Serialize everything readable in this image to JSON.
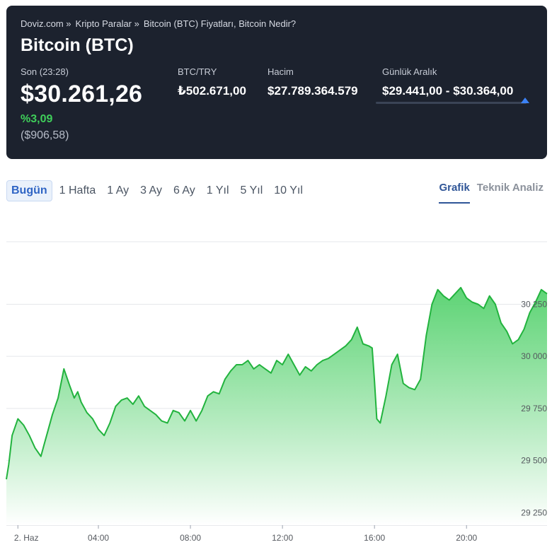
{
  "header": {
    "breadcrumb": [
      "Doviz.com »",
      "Kripto Paralar »",
      "Bitcoin (BTC) Fiyatları, Bitcoin Nedir?"
    ],
    "title": "Bitcoin (BTC)",
    "last_label": "Son (23:28)",
    "last_price": "$30.261,26",
    "change_pct": "%3,09",
    "change_abs": "($906,58)",
    "stats": {
      "btc_try_label": "BTC/TRY",
      "btc_try_value": "₺502.671,00",
      "volume_label": "Hacim",
      "volume_value": "$27.789.364.579",
      "range_label": "Günlük Aralık",
      "range_value": "$29.441,00 - $30.364,00",
      "range_position": 0.95
    },
    "colors": {
      "background": "#1c222e",
      "change_positive": "#3fcf5a",
      "range_marker": "#3b82f6"
    }
  },
  "period_tabs": [
    "Bugün",
    "1 Hafta",
    "1 Ay",
    "3 Ay",
    "6 Ay",
    "1 Yıl",
    "5 Yıl",
    "10 Yıl"
  ],
  "active_period": "Bugün",
  "view_tabs": [
    "Grafik",
    "Teknik Analiz"
  ],
  "active_view": "Grafik",
  "chart_data": {
    "type": "area",
    "x_unit": "hour",
    "xlim": [
      0.0,
      23.5
    ],
    "ylim": [
      29190,
      30550
    ],
    "x_ticks": [
      {
        "value": 0.5,
        "label": "2. Haz"
      },
      {
        "value": 4,
        "label": "04:00"
      },
      {
        "value": 8,
        "label": "08:00"
      },
      {
        "value": 12,
        "label": "12:00"
      },
      {
        "value": 16,
        "label": "16:00"
      },
      {
        "value": 20,
        "label": "20:00"
      }
    ],
    "y_ticks": [
      {
        "value": 29250,
        "label": "29 250"
      },
      {
        "value": 29500,
        "label": "29 500"
      },
      {
        "value": 29750,
        "label": "29 750"
      },
      {
        "value": 30000,
        "label": "30 000"
      },
      {
        "value": 30250,
        "label": "30 250"
      }
    ],
    "grid": true,
    "colors": {
      "line": "#22b33e",
      "fill_top": "#4ccf66",
      "fill_bottom": "#ffffff"
    },
    "series": [
      {
        "x": [
          0.0,
          0.1,
          0.25,
          0.5,
          0.75,
          1.0,
          1.25,
          1.5,
          1.65,
          1.8,
          2.0,
          2.25,
          2.5,
          2.75,
          2.95,
          3.1,
          3.25,
          3.5,
          3.75,
          4.0,
          4.25,
          4.5,
          4.75,
          5.0,
          5.25,
          5.5,
          5.75,
          6.0,
          6.25,
          6.5,
          6.75,
          7.0,
          7.25,
          7.5,
          7.75,
          8.0,
          8.25,
          8.5,
          8.75,
          9.0,
          9.25,
          9.5,
          9.75,
          10.0,
          10.25,
          10.5,
          10.75,
          11.0,
          11.25,
          11.5,
          11.75,
          12.0,
          12.25,
          12.5,
          12.75,
          13.0,
          13.25,
          13.5,
          13.75,
          14.0,
          14.25,
          14.5,
          14.75,
          15.0,
          15.25,
          15.5,
          15.75,
          15.9,
          16.0,
          16.1,
          16.25,
          16.5,
          16.75,
          17.0,
          17.25,
          17.5,
          17.75,
          18.0,
          18.25,
          18.5,
          18.75,
          19.0,
          19.25,
          19.5,
          19.75,
          20.0,
          20.25,
          20.5,
          20.75,
          21.0,
          21.25,
          21.5,
          21.75,
          22.0,
          22.25,
          22.5,
          22.75,
          23.0,
          23.25,
          23.5
        ],
        "y": [
          29410,
          29480,
          29620,
          29700,
          29670,
          29620,
          29560,
          29520,
          29580,
          29640,
          29720,
          29800,
          29940,
          29860,
          29800,
          29830,
          29780,
          29730,
          29700,
          29650,
          29620,
          29680,
          29760,
          29790,
          29800,
          29770,
          29810,
          29760,
          29740,
          29720,
          29690,
          29680,
          29740,
          29730,
          29690,
          29740,
          29690,
          29740,
          29810,
          29830,
          29820,
          29890,
          29930,
          29960,
          29960,
          29980,
          29940,
          29960,
          29940,
          29920,
          29980,
          29960,
          30010,
          29960,
          29910,
          29950,
          29930,
          29960,
          29980,
          29990,
          30010,
          30030,
          30050,
          30080,
          30140,
          30060,
          30050,
          30040,
          29880,
          29700,
          29680,
          29810,
          29960,
          30010,
          29870,
          29850,
          29840,
          29890,
          30100,
          30250,
          30320,
          30290,
          30270,
          30300,
          30330,
          30280,
          30260,
          30250,
          30230,
          30290,
          30250,
          30160,
          30120,
          30060,
          30080,
          30130,
          30210,
          30260,
          30320,
          30300
        ]
      }
    ]
  }
}
